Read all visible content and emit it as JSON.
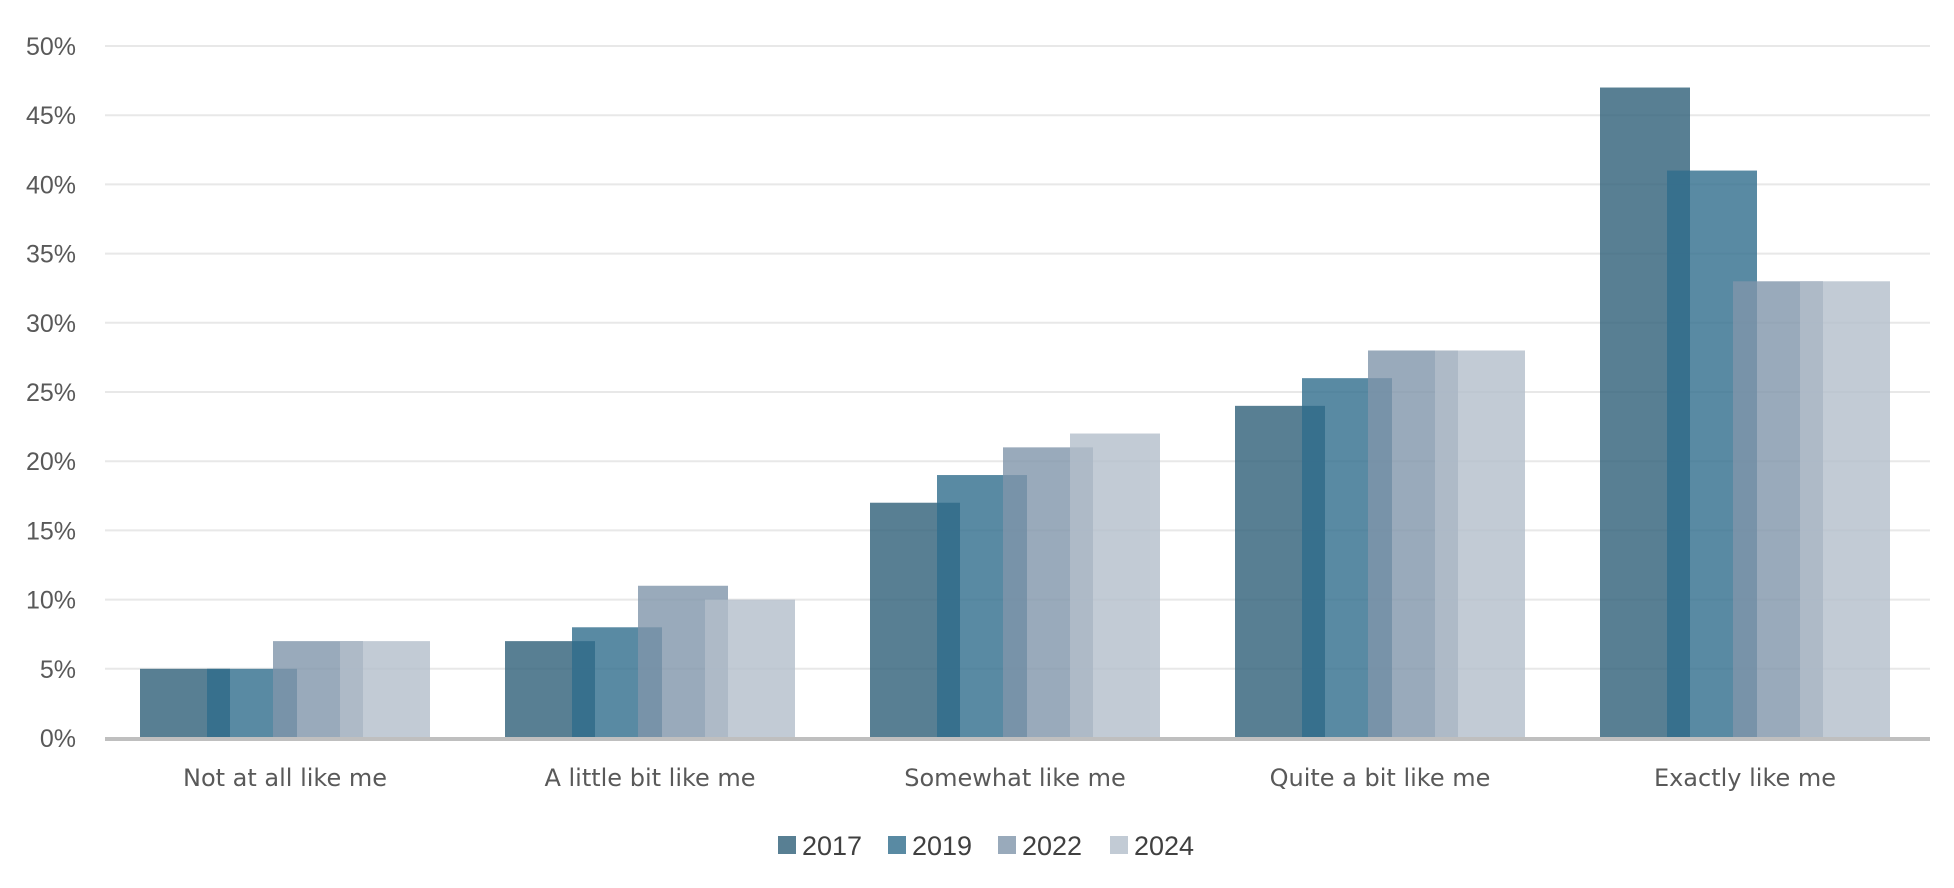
{
  "chart_data": {
    "type": "bar",
    "title": "",
    "xlabel": "",
    "ylabel": "",
    "categories": [
      "Not at all like me",
      "A little bit like me",
      "Somewhat like me",
      "Quite a bit like me",
      "Exactly like me"
    ],
    "series": [
      {
        "name": "2017",
        "color": "#2e5f78",
        "values": [
          5,
          7,
          17,
          24,
          47
        ]
      },
      {
        "name": "2019",
        "color": "#2f6d8c",
        "values": [
          5,
          8,
          19,
          26,
          41
        ]
      },
      {
        "name": "2022",
        "color": "#7f95aa",
        "values": [
          7,
          11,
          21,
          28,
          33
        ]
      },
      {
        "name": "2024",
        "color": "#b3becb",
        "values": [
          7,
          10,
          22,
          28,
          33
        ]
      }
    ],
    "ylim": [
      0,
      50
    ],
    "yticks": [
      0,
      5,
      10,
      15,
      20,
      25,
      30,
      35,
      40,
      45,
      50
    ],
    "ytick_format": "percent",
    "grid": true,
    "bar_opacity": 0.8,
    "legend_position": "bottom"
  }
}
